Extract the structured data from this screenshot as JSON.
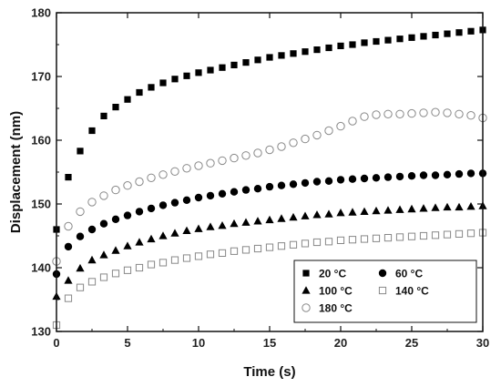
{
  "chart_data": {
    "type": "scatter",
    "xlabel": "Time (s)",
    "ylabel": "Displacement (nm)",
    "xlim": [
      0,
      30
    ],
    "ylim": [
      130,
      180
    ],
    "xticks": [
      "0",
      "5",
      "10",
      "15",
      "20",
      "25",
      "30"
    ],
    "yticks": [
      "130",
      "140",
      "150",
      "160",
      "170",
      "180"
    ],
    "grid": false,
    "legend_position": "bottom-right",
    "x": [
      0,
      0.833,
      1.667,
      2.5,
      3.333,
      4.167,
      5,
      5.833,
      6.667,
      7.5,
      8.333,
      9.167,
      10,
      10.833,
      11.667,
      12.5,
      13.333,
      14.167,
      15,
      15.833,
      16.667,
      17.5,
      18.333,
      19.167,
      20,
      20.833,
      21.667,
      22.5,
      23.333,
      24.167,
      25,
      25.833,
      26.667,
      27.5,
      28.333,
      29.167,
      30
    ],
    "series": [
      {
        "name": "20 °C",
        "marker": "filled-square",
        "values": [
          146,
          154.2,
          158.3,
          161.5,
          163.8,
          165.2,
          166.4,
          167.5,
          168.3,
          169,
          169.6,
          170.1,
          170.6,
          171,
          171.4,
          171.8,
          172.2,
          172.6,
          173,
          173.3,
          173.6,
          173.9,
          174.2,
          174.5,
          174.8,
          175,
          175.3,
          175.5,
          175.7,
          175.9,
          176.1,
          176.3,
          176.5,
          176.7,
          176.9,
          177.1,
          177.3
        ]
      },
      {
        "name": "60 °C",
        "marker": "filled-circle",
        "values": [
          139,
          143.3,
          144.9,
          146,
          146.9,
          147.6,
          148.2,
          148.8,
          149.3,
          149.8,
          150.2,
          150.6,
          151,
          151.3,
          151.6,
          151.9,
          152.2,
          152.4,
          152.7,
          152.9,
          153.1,
          153.3,
          153.5,
          153.6,
          153.8,
          153.9,
          154,
          154.1,
          154.2,
          154.3,
          154.4,
          154.5,
          154.5,
          154.6,
          154.7,
          154.8,
          154.8
        ]
      },
      {
        "name": "100 °C",
        "marker": "filled-triangle",
        "values": [
          135.5,
          138,
          139.9,
          141.2,
          142,
          142.7,
          143.4,
          144,
          144.5,
          145,
          145.4,
          145.8,
          146.1,
          146.4,
          146.6,
          146.9,
          147.1,
          147.3,
          147.5,
          147.7,
          147.9,
          148.1,
          148.3,
          148.4,
          148.6,
          148.7,
          148.8,
          148.9,
          149,
          149.1,
          149.2,
          149.3,
          149.4,
          149.5,
          149.5,
          149.6,
          149.7
        ]
      },
      {
        "name": "140 °C",
        "marker": "open-square",
        "values": [
          131,
          135.2,
          136.9,
          137.8,
          138.5,
          139.1,
          139.6,
          140,
          140.5,
          140.8,
          141.2,
          141.5,
          141.8,
          142.1,
          142.3,
          142.6,
          142.8,
          143,
          143.2,
          143.4,
          143.6,
          143.8,
          144,
          144.1,
          144.3,
          144.4,
          144.5,
          144.6,
          144.7,
          144.8,
          144.9,
          145,
          145.1,
          145.2,
          145.3,
          145.4,
          145.5
        ]
      },
      {
        "name": "180 °C",
        "marker": "open-circle",
        "values": [
          141,
          146.5,
          148.8,
          150.3,
          151.3,
          152.2,
          152.9,
          153.5,
          154.1,
          154.6,
          155.1,
          155.6,
          156,
          156.4,
          156.8,
          157.2,
          157.6,
          158,
          158.5,
          159,
          159.6,
          160.2,
          160.8,
          161.5,
          162.2,
          163,
          163.7,
          164,
          164.1,
          164.1,
          164.2,
          164.3,
          164.4,
          164.3,
          164.1,
          163.9,
          163.5
        ]
      }
    ]
  }
}
